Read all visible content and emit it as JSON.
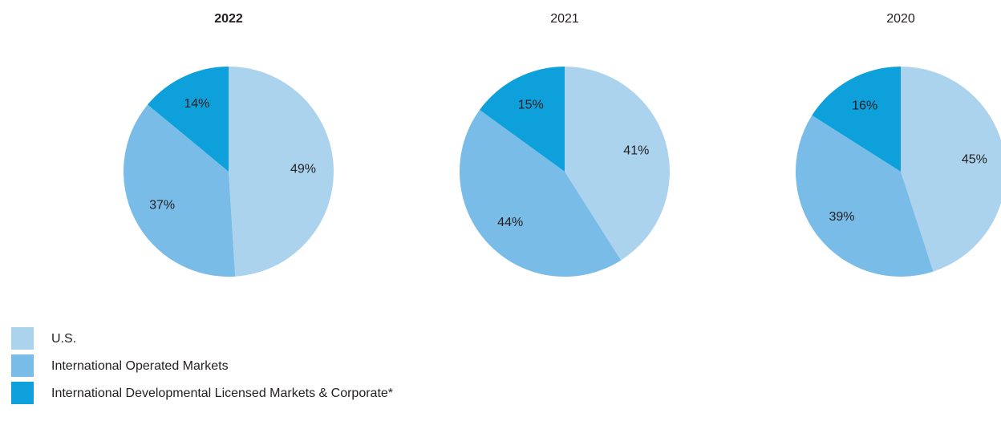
{
  "legend": {
    "labels": [
      "U.S.",
      "International Operated Markets",
      "International Developmental Licensed Markets & Corporate*"
    ],
    "colors": [
      "#acd3ee",
      "#78bce7",
      "#0ea0da"
    ]
  },
  "chart_data": [
    {
      "type": "pie",
      "title": "2022",
      "values": [
        49,
        37,
        14
      ],
      "value_labels": [
        "49%",
        "37%",
        "14%"
      ]
    },
    {
      "type": "pie",
      "title": "2021",
      "values": [
        41,
        44,
        15
      ],
      "value_labels": [
        "41%",
        "44%",
        "15%"
      ]
    },
    {
      "type": "pie",
      "title": "2020",
      "values": [
        45,
        39,
        16
      ],
      "value_labels": [
        "45%",
        "39%",
        "16%"
      ]
    }
  ]
}
